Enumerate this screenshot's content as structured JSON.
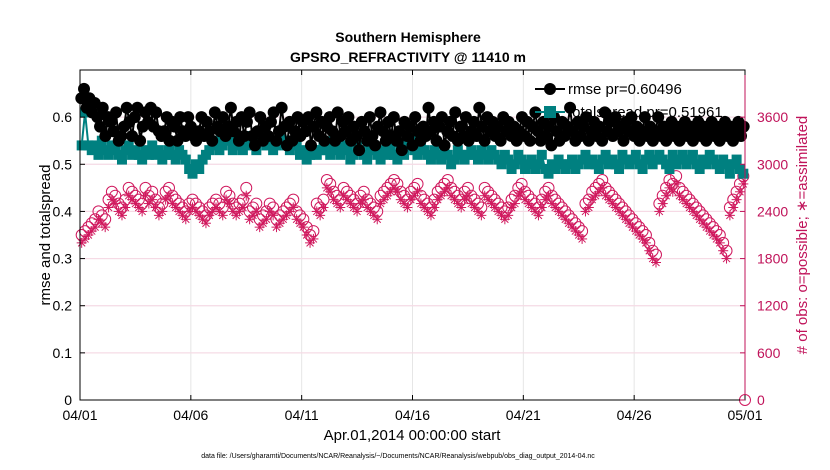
{
  "chart_data": {
    "type": "line",
    "title": "Southern Hemisphere",
    "subtitle": "GPSRO_REFRACTIVITY @ 11410 m",
    "xlabel": "Apr.01,2014 00:00:00 start",
    "ylabel_left": "rmse and totalspread",
    "ylabel_right": "# of obs: o=possible; ∗=assimilated",
    "footnote": "data file: /Users/gharamti/Documents/NCAR/Reanalysis/~/Documents/NCAR/Reanalysis/webpub/obs_diag_output_2014-04.nc",
    "x_range": [
      0,
      30
    ],
    "x_ticks": [
      0,
      5,
      10,
      15,
      20,
      25,
      30
    ],
    "x_tick_labels": [
      "04/01",
      "04/06",
      "04/11",
      "04/16",
      "04/21",
      "04/26",
      "05/01"
    ],
    "ylim_left": [
      0,
      0.7
    ],
    "y_ticks_left": [
      0,
      0.1,
      0.2,
      0.3,
      0.4,
      0.5,
      0.6
    ],
    "y_tick_labels_left": [
      "0",
      "0.1",
      "0.2",
      "0.3",
      "0.4",
      "0.5",
      "0.6"
    ],
    "ylim_right": [
      0,
      4200
    ],
    "y_ticks_right": [
      0,
      600,
      1200,
      1800,
      2400,
      3000,
      3600
    ],
    "y_tick_labels_right": [
      "0",
      "600",
      "1200",
      "1800",
      "2400",
      "3000",
      "3600"
    ],
    "grid": true,
    "legend_placement": "top-right",
    "colors": {
      "rmse": "#000000",
      "spread": "#008080",
      "obs": "#d0195e",
      "axis_right": "#c0135a"
    },
    "series": [
      {
        "name": "rmse pr=0.60496",
        "axis": "left",
        "marker": "filled-circle",
        "values": [
          0.64,
          0.66,
          0.62,
          0.64,
          0.61,
          0.63,
          0.6,
          0.58,
          0.62,
          0.56,
          0.6,
          0.59,
          0.57,
          0.61,
          0.55,
          0.56,
          0.58,
          0.62,
          0.59,
          0.56,
          0.6,
          0.62,
          0.55,
          0.58,
          0.61,
          0.59,
          0.62,
          0.58,
          0.61,
          0.57,
          0.56,
          0.57,
          0.6,
          0.55,
          0.59,
          0.58,
          0.55,
          0.6,
          0.57,
          0.56,
          0.6,
          0.58,
          0.56,
          0.55,
          0.57,
          0.6,
          0.56,
          0.59,
          0.57,
          0.55,
          0.61,
          0.58,
          0.57,
          0.6,
          0.56,
          0.58,
          0.62,
          0.57,
          0.59,
          0.55,
          0.6,
          0.56,
          0.59,
          0.61,
          0.56,
          0.54,
          0.57,
          0.6,
          0.55,
          0.58,
          0.56,
          0.59,
          0.61,
          0.55,
          0.57,
          0.62,
          0.58,
          0.54,
          0.59,
          0.55,
          0.57,
          0.6,
          0.56,
          0.59,
          0.57,
          0.6,
          0.54,
          0.58,
          0.61,
          0.56,
          0.59,
          0.55,
          0.58,
          0.6,
          0.57,
          0.55,
          0.61,
          0.56,
          0.59,
          0.57,
          0.6,
          0.55,
          0.58,
          0.56,
          0.53,
          0.59,
          0.57,
          0.55,
          0.6,
          0.56,
          0.54,
          0.58,
          0.61,
          0.57,
          0.55,
          0.59,
          0.56,
          0.6,
          0.55,
          0.57,
          0.53,
          0.59,
          0.56,
          0.58,
          0.54,
          0.6,
          0.57,
          0.55,
          0.58,
          0.56,
          0.62,
          0.57,
          0.59,
          0.55,
          0.58,
          0.6,
          0.54,
          0.57,
          0.59,
          0.56,
          0.61,
          0.55,
          0.58,
          0.56,
          0.6,
          0.55,
          0.57,
          0.59,
          0.56,
          0.62,
          0.58,
          0.55,
          0.6,
          0.57,
          0.59,
          0.56,
          0.58,
          0.55,
          0.6,
          0.57,
          0.59,
          0.56,
          0.58,
          0.55,
          0.57,
          0.6,
          0.56,
          0.59,
          0.55,
          0.58,
          0.61,
          0.57,
          0.55,
          0.59,
          0.56,
          0.58,
          0.54,
          0.6,
          0.57,
          0.55,
          0.59,
          0.56,
          0.58,
          0.62,
          0.57,
          0.55,
          0.59,
          0.56,
          0.58,
          0.6,
          0.55,
          0.57,
          0.59,
          0.56,
          0.58,
          0.55,
          0.61,
          0.57,
          0.59,
          0.56,
          0.6,
          0.57,
          0.58,
          0.55,
          0.59,
          0.57,
          0.6,
          0.56,
          0.58,
          0.55,
          0.57,
          0.6,
          0.56,
          0.58,
          0.55,
          0.57,
          0.6,
          0.56,
          0.58,
          0.55,
          0.57,
          0.59,
          0.56,
          0.58,
          0.55,
          0.57,
          0.59,
          0.56,
          0.58,
          0.55,
          0.57,
          0.59,
          0.56,
          0.58,
          0.55,
          0.57,
          0.59,
          0.56,
          0.58,
          0.55,
          0.57,
          0.59,
          0.56,
          0.58,
          0.55,
          0.57,
          0.59,
          0.56,
          0.58
        ]
      },
      {
        "name": "totalspread pr=0.51961",
        "axis": "left",
        "marker": "filled-square",
        "values": [
          0.54,
          0.61,
          0.54,
          0.53,
          0.54,
          0.52,
          0.55,
          0.53,
          0.52,
          0.54,
          0.53,
          0.52,
          0.51,
          0.53,
          0.54,
          0.52,
          0.53,
          0.52,
          0.51,
          0.53,
          0.52,
          0.54,
          0.52,
          0.53,
          0.51,
          0.52,
          0.53,
          0.52,
          0.51,
          0.53,
          0.52,
          0.51,
          0.49,
          0.48,
          0.5,
          0.49,
          0.51,
          0.52,
          0.53,
          0.54,
          0.55,
          0.53,
          0.54,
          0.56,
          0.55,
          0.53,
          0.54,
          0.55,
          0.53,
          0.54,
          0.56,
          0.55,
          0.53,
          0.55,
          0.56,
          0.54,
          0.55,
          0.53,
          0.54,
          0.56,
          0.55,
          0.54,
          0.53,
          0.55,
          0.54,
          0.52,
          0.53,
          0.51,
          0.52,
          0.53,
          0.52,
          0.53,
          0.54,
          0.53,
          0.52,
          0.55,
          0.53,
          0.52,
          0.54,
          0.53,
          0.51,
          0.52,
          0.54,
          0.53,
          0.52,
          0.51,
          0.53,
          0.54,
          0.52,
          0.51,
          0.53,
          0.52,
          0.54,
          0.52,
          0.51,
          0.53,
          0.52,
          0.54,
          0.55,
          0.53,
          0.52,
          0.54,
          0.53,
          0.52,
          0.51,
          0.53,
          0.52,
          0.51,
          0.53,
          0.52,
          0.5,
          0.51,
          0.53,
          0.52,
          0.51,
          0.52,
          0.53,
          0.52,
          0.51,
          0.53,
          0.52,
          0.51,
          0.53,
          0.52,
          0.51,
          0.5,
          0.52,
          0.51,
          0.49,
          0.5,
          0.52,
          0.51,
          0.49,
          0.5,
          0.51,
          0.49,
          0.5,
          0.52,
          0.49,
          0.48,
          0.5,
          0.49,
          0.51,
          0.5,
          0.49,
          0.5,
          0.51,
          0.49,
          0.5,
          0.51,
          0.52,
          0.5,
          0.51,
          0.5,
          0.49,
          0.51,
          0.52,
          0.5,
          0.51,
          0.5,
          0.49,
          0.52,
          0.51,
          0.5,
          0.51,
          0.52,
          0.5,
          0.49,
          0.51,
          0.52,
          0.5,
          0.51,
          0.52,
          0.51,
          0.5,
          0.49,
          0.52,
          0.5,
          0.51,
          0.52,
          0.5,
          0.51,
          0.52,
          0.5,
          0.49,
          0.51,
          0.5,
          0.52,
          0.51,
          0.5,
          0.49,
          0.51,
          0.5,
          0.48,
          0.5,
          0.51,
          0.49,
          0.48
        ]
      },
      {
        "name": "possible",
        "axis": "right",
        "marker": "open-circle",
        "values": [
          2100,
          2150,
          2200,
          2250,
          2300,
          2400,
          2350,
          2300,
          2550,
          2650,
          2600,
          2500,
          2450,
          2550,
          2700,
          2650,
          2600,
          2550,
          2500,
          2700,
          2600,
          2650,
          2550,
          2450,
          2500,
          2650,
          2700,
          2600,
          2550,
          2500,
          2450,
          2400,
          2500,
          2550,
          2500,
          2450,
          2400,
          2350,
          2450,
          2500,
          2550,
          2500,
          2450,
          2650,
          2600,
          2500,
          2450,
          2500,
          2550,
          2700,
          2400,
          2450,
          2500,
          2300,
          2350,
          2400,
          2500,
          2450,
          2300,
          2350,
          2400,
          2450,
          2500,
          2550,
          2400,
          2350,
          2300,
          2200,
          2100,
          2150,
          2500,
          2450,
          2550,
          2800,
          2750,
          2650,
          2600,
          2550,
          2700,
          2650,
          2600,
          2550,
          2500,
          2600,
          2650,
          2550,
          2500,
          2450,
          2400,
          2600,
          2650,
          2700,
          2750,
          2800,
          2750,
          2650,
          2600,
          2550,
          2650,
          2700,
          2750,
          2600,
          2550,
          2500,
          2450,
          2550,
          2650,
          2700,
          2750,
          2800,
          2700,
          2650,
          2600,
          2550,
          2650,
          2700,
          2600,
          2550,
          2500,
          2450,
          2700,
          2650,
          2600,
          2550,
          2500,
          2450,
          2400,
          2450,
          2550,
          2600,
          2700,
          2750,
          2650,
          2600,
          2550,
          2500,
          2450,
          2550,
          2650,
          2700,
          2600,
          2550,
          2500,
          2450,
          2400,
          2350,
          2300,
          2250,
          2200,
          2150,
          2500,
          2550,
          2650,
          2700,
          2750,
          2800,
          2700,
          2650,
          2600,
          2550,
          2500,
          2450,
          2400,
          2350,
          2300,
          2250,
          2200,
          2150,
          2100,
          2000,
          1900,
          1850,
          2500,
          2600,
          2700,
          2800,
          2750,
          2850,
          2700,
          2650,
          2600,
          2550,
          2500,
          2450,
          2400,
          2350,
          2300,
          2250,
          2200,
          2150,
          2100,
          2000,
          1900,
          2450,
          2550,
          2650,
          2750,
          2850
        ]
      },
      {
        "name": "assimilated",
        "axis": "right",
        "marker": "asterisk",
        "values": [
          2000,
          2050,
          2100,
          2150,
          2200,
          2300,
          2250,
          2200,
          2450,
          2550,
          2500,
          2400,
          2350,
          2450,
          2600,
          2550,
          2500,
          2450,
          2400,
          2600,
          2500,
          2550,
          2450,
          2350,
          2400,
          2550,
          2600,
          2500,
          2450,
          2400,
          2350,
          2300,
          2400,
          2450,
          2400,
          2350,
          2300,
          2250,
          2350,
          2400,
          2450,
          2400,
          2350,
          2550,
          2500,
          2400,
          2350,
          2400,
          2450,
          2600,
          2300,
          2350,
          2400,
          2200,
          2250,
          2300,
          2400,
          2350,
          2200,
          2250,
          2300,
          2350,
          2400,
          2450,
          2300,
          2250,
          2200,
          2100,
          2000,
          2050,
          2400,
          2350,
          2450,
          2700,
          2650,
          2550,
          2500,
          2450,
          2600,
          2550,
          2500,
          2450,
          2400,
          2500,
          2550,
          2450,
          2400,
          2350,
          2300,
          2500,
          2550,
          2600,
          2650,
          2700,
          2650,
          2550,
          2500,
          2450,
          2550,
          2600,
          2650,
          2500,
          2450,
          2400,
          2350,
          2450,
          2550,
          2600,
          2650,
          2700,
          2600,
          2550,
          2500,
          2450,
          2550,
          2600,
          2500,
          2450,
          2400,
          2350,
          2600,
          2550,
          2500,
          2450,
          2400,
          2350,
          2300,
          2350,
          2450,
          2500,
          2600,
          2650,
          2550,
          2500,
          2450,
          2400,
          2350,
          2450,
          2550,
          2600,
          2500,
          2450,
          2400,
          2350,
          2300,
          2250,
          2200,
          2150,
          2100,
          2050,
          2400,
          2450,
          2550,
          2600,
          2650,
          2700,
          2600,
          2550,
          2500,
          2450,
          2400,
          2350,
          2300,
          2250,
          2200,
          2150,
          2100,
          2050,
          2000,
          1900,
          1800,
          1750,
          2400,
          2500,
          2600,
          2700,
          2650,
          2750,
          2600,
          2550,
          2500,
          2450,
          2400,
          2350,
          2300,
          2250,
          2200,
          2150,
          2100,
          2050,
          2000,
          1900,
          1800,
          2350,
          2450,
          2550,
          2650,
          2750
        ]
      }
    ]
  }
}
